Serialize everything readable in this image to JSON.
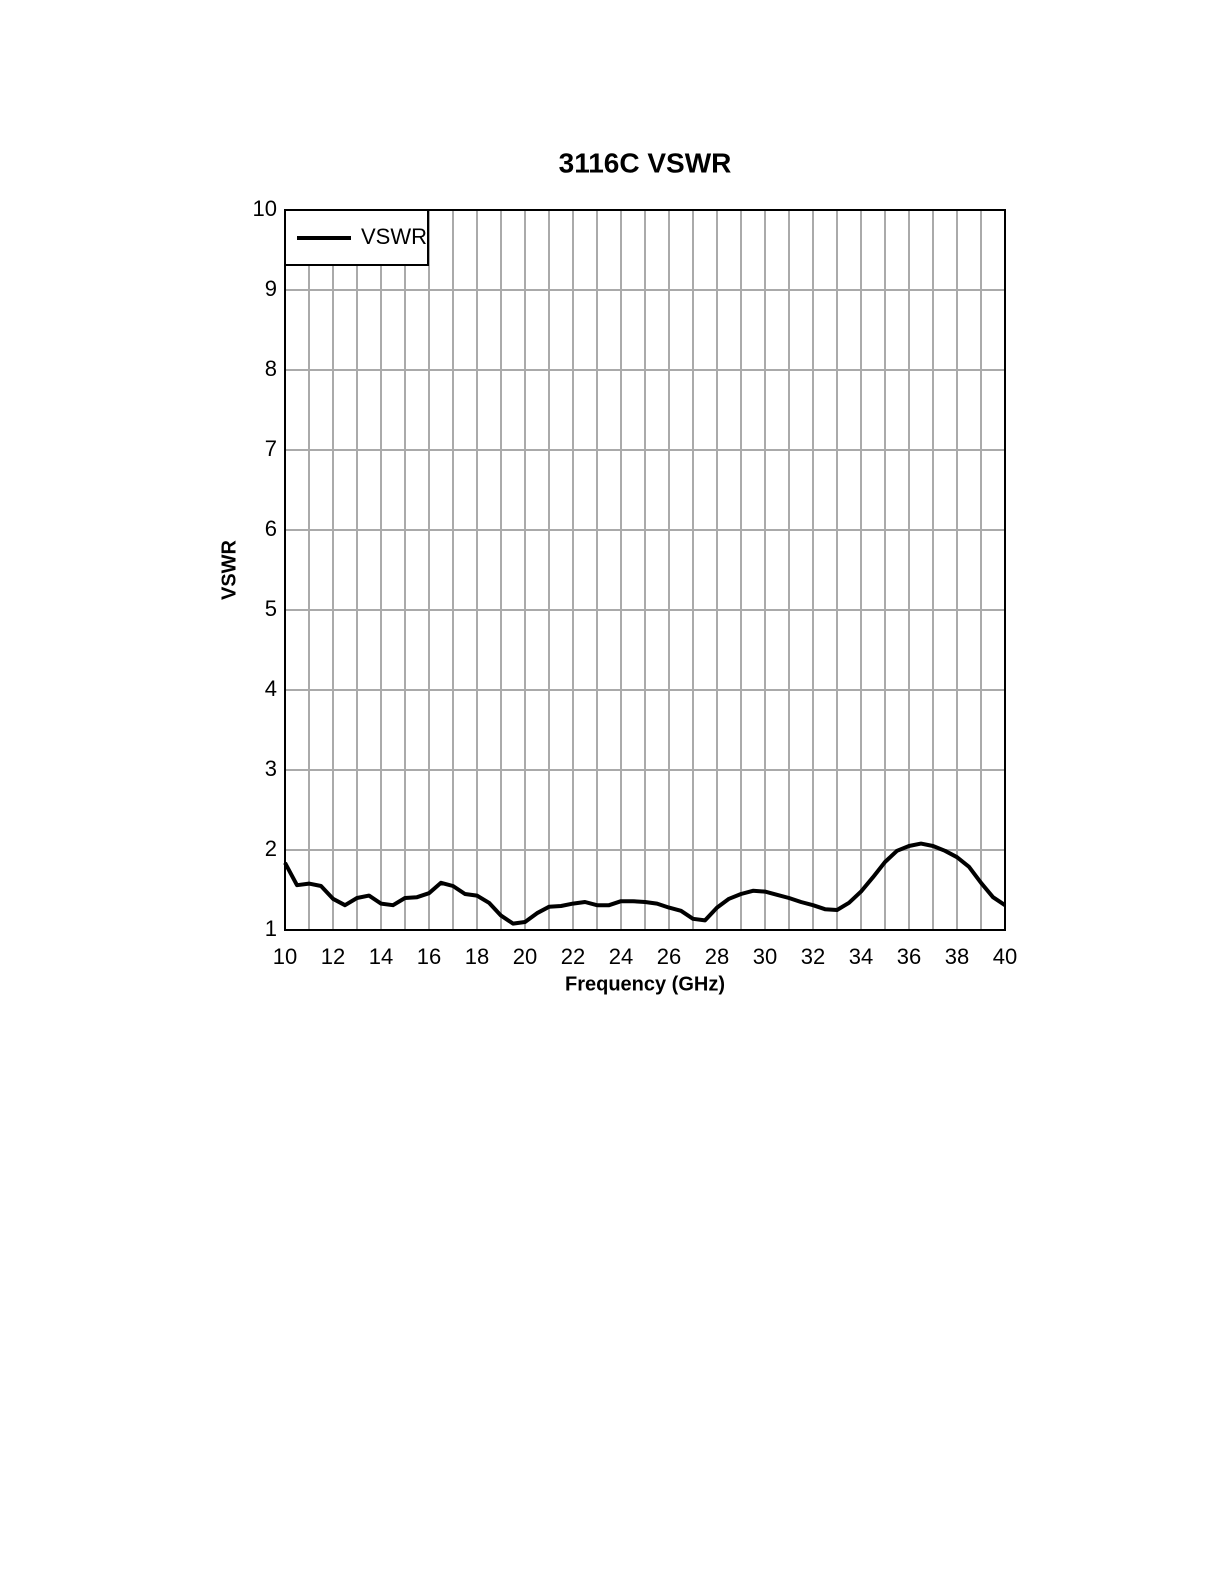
{
  "chart_data": {
    "type": "line",
    "title": "3116C VSWR",
    "x_label": "Frequency (GHz)",
    "y_label": "VSWR",
    "x": [
      10,
      10.5,
      11,
      11.5,
      12,
      12.5,
      13,
      13.5,
      14,
      14.5,
      15,
      15.5,
      16,
      16.5,
      17,
      17.5,
      18,
      18.5,
      19,
      19.5,
      20,
      20.5,
      21,
      21.5,
      22,
      22.5,
      23,
      23.5,
      24,
      24.5,
      25,
      25.5,
      26,
      26.5,
      27,
      27.5,
      28,
      28.5,
      29,
      29.5,
      30,
      30.5,
      31,
      31.5,
      32,
      32.5,
      33,
      33.5,
      34,
      34.5,
      35,
      35.5,
      36,
      36.5,
      37,
      37.5,
      38,
      38.5,
      39,
      39.5,
      40
    ],
    "series": [
      {
        "name": "VSWR",
        "color": "#000000",
        "values": [
          1.84,
          1.56,
          1.58,
          1.55,
          1.39,
          1.31,
          1.4,
          1.43,
          1.33,
          1.31,
          1.4,
          1.41,
          1.46,
          1.59,
          1.55,
          1.45,
          1.43,
          1.34,
          1.18,
          1.08,
          1.1,
          1.21,
          1.29,
          1.3,
          1.33,
          1.35,
          1.31,
          1.31,
          1.36,
          1.36,
          1.35,
          1.33,
          1.28,
          1.24,
          1.14,
          1.12,
          1.28,
          1.39,
          1.45,
          1.49,
          1.48,
          1.44,
          1.4,
          1.35,
          1.31,
          1.26,
          1.25,
          1.34,
          1.48,
          1.66,
          1.85,
          1.99,
          2.05,
          2.08,
          2.05,
          1.99,
          1.91,
          1.79,
          1.59,
          1.41,
          1.31
        ]
      }
    ],
    "xlim": [
      10,
      40
    ],
    "ylim": [
      1,
      10
    ],
    "xticks": [
      10,
      12,
      14,
      16,
      18,
      20,
      22,
      24,
      26,
      28,
      30,
      32,
      34,
      36,
      38,
      40
    ],
    "yticks": [
      1,
      2,
      3,
      4,
      5,
      6,
      7,
      8,
      9,
      10
    ],
    "grid": true,
    "legend": "upper left"
  }
}
